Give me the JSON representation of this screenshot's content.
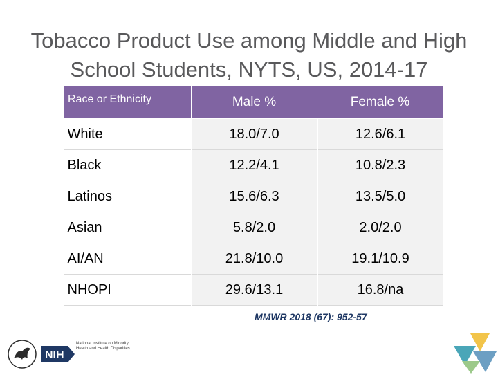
{
  "title": "Tobacco Product Use among Middle and High School Students, NYTS, US, 2014-17",
  "table": {
    "headers": [
      "Race or Ethnicity",
      "Male %",
      "Female %"
    ],
    "rows": [
      {
        "group": "White",
        "male": "18.0/7.0",
        "female": "12.6/6.1"
      },
      {
        "group": "Black",
        "male": "12.2/4.1",
        "female": "10.8/2.3"
      },
      {
        "group": "Latinos",
        "male": "15.6/6.3",
        "female": "13.5/5.0"
      },
      {
        "group": "Asian",
        "male": "5.8/2.0",
        "female": "2.0/2.0"
      },
      {
        "group": "AI/AN",
        "male": "21.8/10.0",
        "female": "19.1/10.9"
      },
      {
        "group": "NHOPI",
        "male": "29.6/13.1",
        "female": "16.8/na"
      }
    ]
  },
  "citation": "MMWR 2018 (67): 952-57",
  "footer": {
    "hhs_logo_icon": "hhs-eagle-seal-icon",
    "nih_logo_text": "NIH",
    "nih_institute": "National Institute on Minority Health and Health Disparities"
  },
  "colors": {
    "header_bg": "#8064a2",
    "title_text": "#59595b",
    "citation_text": "#1f3864"
  }
}
